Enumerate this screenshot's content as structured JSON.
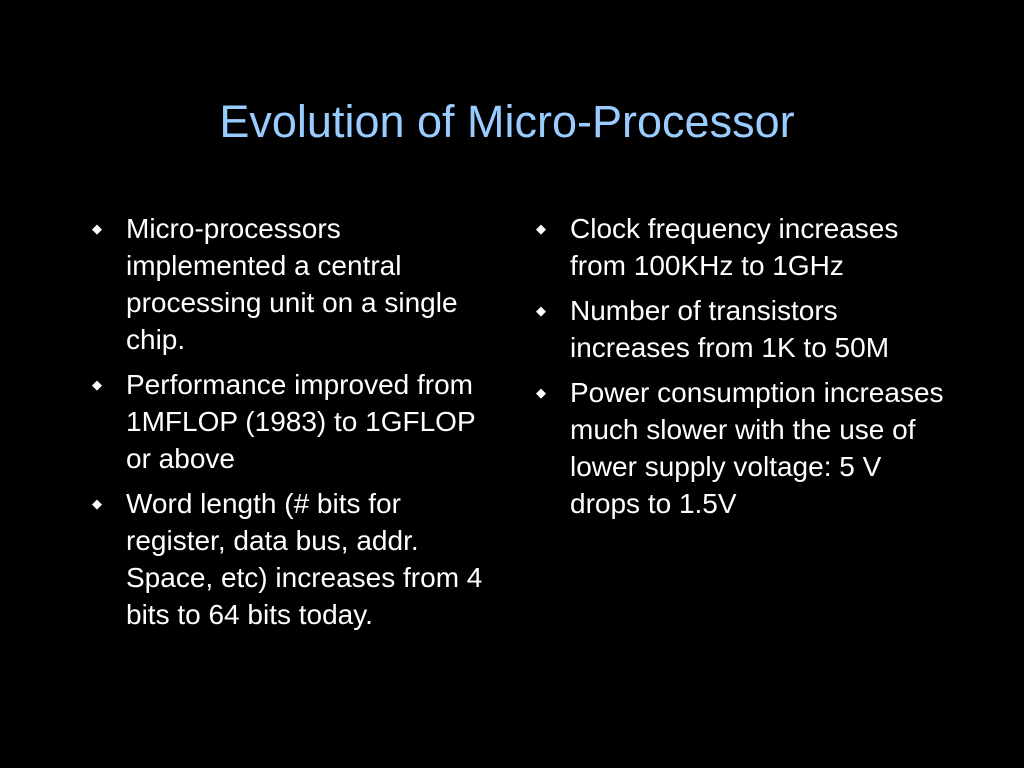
{
  "slide": {
    "title": "Evolution of Micro-Processor",
    "bullet_symbol": "◆",
    "colors": {
      "background": "#000000",
      "title": "#99ccff",
      "text": "#ffffff"
    },
    "left_column": [
      "Micro-processors implemented a central processing unit on a single chip.",
      "Performance improved from 1MFLOP (1983) to 1GFLOP or above",
      "Word length (# bits for register, data bus, addr. Space, etc) increases from 4 bits to 64 bits today."
    ],
    "right_column": [
      "Clock frequency increases from 100KHz to 1GHz",
      "Number of transistors increases from 1K to 50M",
      "Power consumption increases much slower with the use of lower supply voltage: 5 V drops to 1.5V"
    ]
  }
}
